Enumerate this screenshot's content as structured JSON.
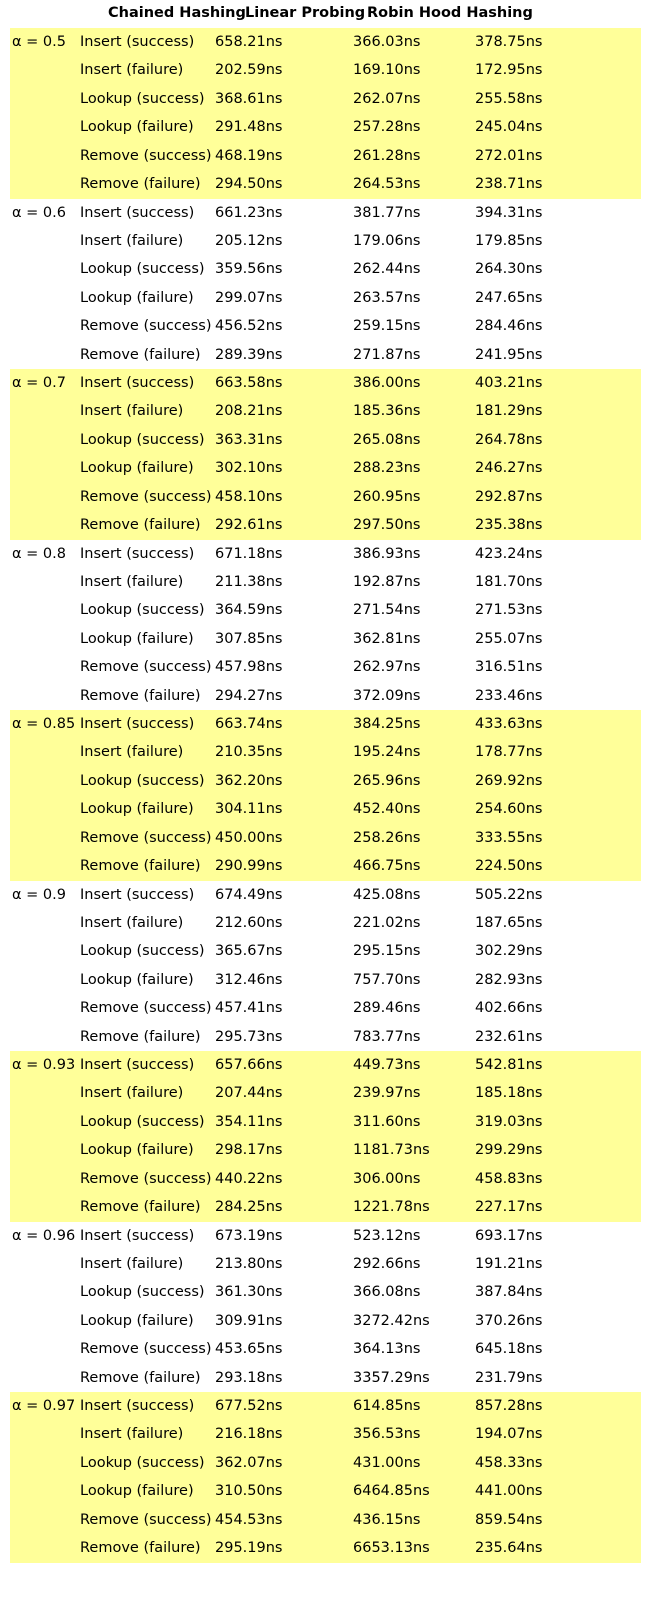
{
  "header": {
    "chained": "Chained Hashing",
    "linear": "Linear Probing",
    "robin": "Robin Hood Hashing"
  },
  "groups": [
    {
      "alpha": "α = 0.5",
      "highlight": true,
      "rows": [
        {
          "op": "Insert (success)",
          "chained": "658.21ns",
          "linear": "366.03ns",
          "robin": "378.75ns"
        },
        {
          "op": "Insert (failure)",
          "chained": "202.59ns",
          "linear": "169.10ns",
          "robin": "172.95ns"
        },
        {
          "op": "Lookup (success)",
          "chained": "368.61ns",
          "linear": "262.07ns",
          "robin": "255.58ns"
        },
        {
          "op": "Lookup (failure)",
          "chained": "291.48ns",
          "linear": "257.28ns",
          "robin": "245.04ns"
        },
        {
          "op": "Remove (success)",
          "chained": "468.19ns",
          "linear": "261.28ns",
          "robin": "272.01ns"
        },
        {
          "op": "Remove (failure)",
          "chained": "294.50ns",
          "linear": "264.53ns",
          "robin": "238.71ns"
        }
      ]
    },
    {
      "alpha": "α = 0.6",
      "highlight": false,
      "rows": [
        {
          "op": "Insert (success)",
          "chained": "661.23ns",
          "linear": "381.77ns",
          "robin": "394.31ns"
        },
        {
          "op": "Insert (failure)",
          "chained": "205.12ns",
          "linear": "179.06ns",
          "robin": "179.85ns"
        },
        {
          "op": "Lookup (success)",
          "chained": "359.56ns",
          "linear": "262.44ns",
          "robin": "264.30ns"
        },
        {
          "op": "Lookup (failure)",
          "chained": "299.07ns",
          "linear": "263.57ns",
          "robin": "247.65ns"
        },
        {
          "op": "Remove (success)",
          "chained": "456.52ns",
          "linear": "259.15ns",
          "robin": "284.46ns"
        },
        {
          "op": "Remove (failure)",
          "chained": "289.39ns",
          "linear": "271.87ns",
          "robin": "241.95ns"
        }
      ]
    },
    {
      "alpha": "α = 0.7",
      "highlight": true,
      "rows": [
        {
          "op": "Insert (success)",
          "chained": "663.58ns",
          "linear": "386.00ns",
          "robin": "403.21ns"
        },
        {
          "op": "Insert (failure)",
          "chained": "208.21ns",
          "linear": "185.36ns",
          "robin": "181.29ns"
        },
        {
          "op": "Lookup (success)",
          "chained": "363.31ns",
          "linear": "265.08ns",
          "robin": "264.78ns"
        },
        {
          "op": "Lookup (failure)",
          "chained": "302.10ns",
          "linear": "288.23ns",
          "robin": "246.27ns"
        },
        {
          "op": "Remove (success)",
          "chained": "458.10ns",
          "linear": "260.95ns",
          "robin": "292.87ns"
        },
        {
          "op": "Remove (failure)",
          "chained": "292.61ns",
          "linear": "297.50ns",
          "robin": "235.38ns"
        }
      ]
    },
    {
      "alpha": "α = 0.8",
      "highlight": false,
      "rows": [
        {
          "op": "Insert (success)",
          "chained": "671.18ns",
          "linear": "386.93ns",
          "robin": "423.24ns"
        },
        {
          "op": "Insert (failure)",
          "chained": "211.38ns",
          "linear": "192.87ns",
          "robin": "181.70ns"
        },
        {
          "op": "Lookup (success)",
          "chained": "364.59ns",
          "linear": "271.54ns",
          "robin": "271.53ns"
        },
        {
          "op": "Lookup (failure)",
          "chained": "307.85ns",
          "linear": "362.81ns",
          "robin": "255.07ns"
        },
        {
          "op": "Remove (success)",
          "chained": "457.98ns",
          "linear": "262.97ns",
          "robin": "316.51ns"
        },
        {
          "op": "Remove (failure)",
          "chained": "294.27ns",
          "linear": "372.09ns",
          "robin": "233.46ns"
        }
      ]
    },
    {
      "alpha": "α = 0.85",
      "highlight": true,
      "rows": [
        {
          "op": "Insert (success)",
          "chained": "663.74ns",
          "linear": "384.25ns",
          "robin": "433.63ns"
        },
        {
          "op": "Insert (failure)",
          "chained": "210.35ns",
          "linear": "195.24ns",
          "robin": "178.77ns"
        },
        {
          "op": "Lookup (success)",
          "chained": "362.20ns",
          "linear": "265.96ns",
          "robin": "269.92ns"
        },
        {
          "op": "Lookup (failure)",
          "chained": "304.11ns",
          "linear": "452.40ns",
          "robin": "254.60ns"
        },
        {
          "op": "Remove (success)",
          "chained": "450.00ns",
          "linear": "258.26ns",
          "robin": "333.55ns"
        },
        {
          "op": "Remove (failure)",
          "chained": "290.99ns",
          "linear": "466.75ns",
          "robin": "224.50ns"
        }
      ]
    },
    {
      "alpha": "α = 0.9",
      "highlight": false,
      "rows": [
        {
          "op": "Insert (success)",
          "chained": "674.49ns",
          "linear": "425.08ns",
          "robin": "505.22ns"
        },
        {
          "op": "Insert (failure)",
          "chained": "212.60ns",
          "linear": "221.02ns",
          "robin": "187.65ns"
        },
        {
          "op": "Lookup (success)",
          "chained": "365.67ns",
          "linear": "295.15ns",
          "robin": "302.29ns"
        },
        {
          "op": "Lookup (failure)",
          "chained": "312.46ns",
          "linear": "757.70ns",
          "robin": "282.93ns"
        },
        {
          "op": "Remove (success)",
          "chained": "457.41ns",
          "linear": "289.46ns",
          "robin": "402.66ns"
        },
        {
          "op": "Remove (failure)",
          "chained": "295.73ns",
          "linear": "783.77ns",
          "robin": "232.61ns"
        }
      ]
    },
    {
      "alpha": "α = 0.93",
      "highlight": true,
      "rows": [
        {
          "op": "Insert (success)",
          "chained": "657.66ns",
          "linear": "449.73ns",
          "robin": "542.81ns"
        },
        {
          "op": "Insert (failure)",
          "chained": "207.44ns",
          "linear": "239.97ns",
          "robin": "185.18ns"
        },
        {
          "op": "Lookup (success)",
          "chained": "354.11ns",
          "linear": "311.60ns",
          "robin": "319.03ns"
        },
        {
          "op": "Lookup (failure)",
          "chained": "298.17ns",
          "linear": "1181.73ns",
          "robin": "299.29ns"
        },
        {
          "op": "Remove (success)",
          "chained": "440.22ns",
          "linear": "306.00ns",
          "robin": "458.83ns"
        },
        {
          "op": "Remove (failure)",
          "chained": "284.25ns",
          "linear": "1221.78ns",
          "robin": "227.17ns"
        }
      ]
    },
    {
      "alpha": "α = 0.96",
      "highlight": false,
      "rows": [
        {
          "op": "Insert (success)",
          "chained": "673.19ns",
          "linear": "523.12ns",
          "robin": "693.17ns"
        },
        {
          "op": "Insert (failure)",
          "chained": "213.80ns",
          "linear": "292.66ns",
          "robin": "191.21ns"
        },
        {
          "op": "Lookup (success)",
          "chained": "361.30ns",
          "linear": "366.08ns",
          "robin": "387.84ns"
        },
        {
          "op": "Lookup (failure)",
          "chained": "309.91ns",
          "linear": "3272.42ns",
          "robin": "370.26ns"
        },
        {
          "op": "Remove (success)",
          "chained": "453.65ns",
          "linear": "364.13ns",
          "robin": "645.18ns"
        },
        {
          "op": "Remove (failure)",
          "chained": "293.18ns",
          "linear": "3357.29ns",
          "robin": "231.79ns"
        }
      ]
    },
    {
      "alpha": "α = 0.97",
      "highlight": true,
      "rows": [
        {
          "op": "Insert (success)",
          "chained": "677.52ns",
          "linear": "614.85ns",
          "robin": "857.28ns"
        },
        {
          "op": "Insert (failure)",
          "chained": "216.18ns",
          "linear": "356.53ns",
          "robin": "194.07ns"
        },
        {
          "op": "Lookup (success)",
          "chained": "362.07ns",
          "linear": "431.00ns",
          "robin": "458.33ns"
        },
        {
          "op": "Lookup (failure)",
          "chained": "310.50ns",
          "linear": "6464.85ns",
          "robin": "441.00ns"
        },
        {
          "op": "Remove (success)",
          "chained": "454.53ns",
          "linear": "436.15ns",
          "robin": "859.54ns"
        },
        {
          "op": "Remove (failure)",
          "chained": "295.19ns",
          "linear": "6653.13ns",
          "robin": "235.64ns"
        }
      ]
    }
  ]
}
